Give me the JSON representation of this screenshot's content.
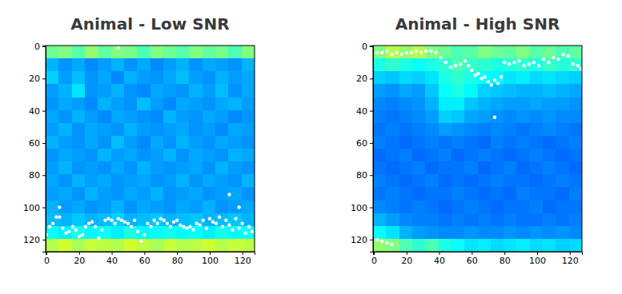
{
  "chart_data": [
    {
      "type": "heatmap",
      "title": "Animal - Low SNR",
      "xlim": [
        -0.5,
        127.5
      ],
      "ylim": [
        -0.5,
        127.5
      ],
      "xticks": [
        0,
        20,
        40,
        60,
        80,
        100,
        120
      ],
      "yticks": [
        0,
        20,
        40,
        60,
        80,
        100,
        120
      ],
      "zlim": [
        0,
        1
      ],
      "x_edges": [
        -0.5,
        7.5,
        15.5,
        23.5,
        31.5,
        39.5,
        47.5,
        55.5,
        63.5,
        71.5,
        79.5,
        87.5,
        95.5,
        103.5,
        111.5,
        119.5,
        127.5
      ],
      "y_edges": [
        -0.5,
        7.5,
        15.5,
        23.5,
        31.5,
        39.5,
        47.5,
        55.5,
        63.5,
        71.5,
        79.5,
        87.5,
        95.5,
        103.5,
        111.5,
        119.5,
        127.5
      ],
      "cells": [
        [
          0.48,
          0.5,
          0.46,
          0.52,
          0.47,
          0.5,
          0.49,
          0.45,
          0.5,
          0.48,
          0.46,
          0.5,
          0.47,
          0.49,
          0.45,
          0.5
        ],
        [
          0.3,
          0.27,
          0.29,
          0.26,
          0.28,
          0.3,
          0.27,
          0.29,
          0.26,
          0.28,
          0.3,
          0.27,
          0.29,
          0.28,
          0.27,
          0.3
        ],
        [
          0.33,
          0.28,
          0.31,
          0.27,
          0.29,
          0.26,
          0.3,
          0.28,
          0.27,
          0.29,
          0.31,
          0.28,
          0.27,
          0.3,
          0.28,
          0.29
        ],
        [
          0.28,
          0.3,
          0.35,
          0.27,
          0.28,
          0.3,
          0.27,
          0.26,
          0.29,
          0.28,
          0.27,
          0.3,
          0.28,
          0.31,
          0.27,
          0.29
        ],
        [
          0.27,
          0.29,
          0.28,
          0.26,
          0.3,
          0.28,
          0.27,
          0.31,
          0.28,
          0.26,
          0.29,
          0.28,
          0.27,
          0.29,
          0.3,
          0.28
        ],
        [
          0.29,
          0.27,
          0.3,
          0.28,
          0.26,
          0.29,
          0.28,
          0.27,
          0.26,
          0.3,
          0.28,
          0.27,
          0.29,
          0.28,
          0.26,
          0.27
        ],
        [
          0.28,
          0.3,
          0.27,
          0.29,
          0.28,
          0.27,
          0.3,
          0.28,
          0.27,
          0.28,
          0.29,
          0.27,
          0.28,
          0.26,
          0.29,
          0.28
        ],
        [
          0.3,
          0.28,
          0.27,
          0.29,
          0.27,
          0.31,
          0.28,
          0.26,
          0.29,
          0.27,
          0.3,
          0.28,
          0.27,
          0.29,
          0.28,
          0.27
        ],
        [
          0.27,
          0.29,
          0.28,
          0.27,
          0.3,
          0.28,
          0.29,
          0.27,
          0.28,
          0.3,
          0.27,
          0.29,
          0.28,
          0.27,
          0.3,
          0.29
        ],
        [
          0.28,
          0.3,
          0.27,
          0.28,
          0.27,
          0.29,
          0.27,
          0.3,
          0.28,
          0.27,
          0.28,
          0.29,
          0.27,
          0.3,
          0.28,
          0.27
        ],
        [
          0.29,
          0.27,
          0.3,
          0.28,
          0.29,
          0.27,
          0.28,
          0.29,
          0.27,
          0.28,
          0.3,
          0.27,
          0.29,
          0.28,
          0.27,
          0.3
        ],
        [
          0.28,
          0.29,
          0.27,
          0.3,
          0.28,
          0.27,
          0.29,
          0.28,
          0.3,
          0.27,
          0.28,
          0.29,
          0.27,
          0.28,
          0.29,
          0.27
        ],
        [
          0.3,
          0.28,
          0.29,
          0.27,
          0.28,
          0.3,
          0.27,
          0.29,
          0.28,
          0.27,
          0.29,
          0.28,
          0.3,
          0.27,
          0.28,
          0.29
        ],
        [
          0.31,
          0.3,
          0.32,
          0.3,
          0.31,
          0.33,
          0.3,
          0.31,
          0.32,
          0.3,
          0.31,
          0.32,
          0.3,
          0.31,
          0.32,
          0.3
        ],
        [
          0.38,
          0.36,
          0.39,
          0.37,
          0.38,
          0.36,
          0.4,
          0.37,
          0.38,
          0.39,
          0.37,
          0.38,
          0.36,
          0.39,
          0.37,
          0.38
        ],
        [
          0.55,
          0.58,
          0.54,
          0.57,
          0.56,
          0.55,
          0.58,
          0.56,
          0.54,
          0.57,
          0.55,
          0.56,
          0.58,
          0.55,
          0.57,
          0.56
        ]
      ],
      "series": [
        {
          "type": "scatter",
          "color": "#ffffff",
          "marker": "circle",
          "x": [
            0,
            2,
            4,
            6,
            8,
            10,
            12,
            14,
            16,
            18,
            20,
            22,
            24,
            26,
            28,
            30,
            32,
            34,
            36,
            38,
            40,
            42,
            44,
            46,
            48,
            50,
            52,
            54,
            56,
            58,
            60,
            62,
            64,
            66,
            68,
            70,
            72,
            74,
            76,
            78,
            80,
            82,
            84,
            86,
            88,
            90,
            92,
            94,
            96,
            98,
            100,
            102,
            104,
            106,
            108,
            110,
            112,
            114,
            116,
            118,
            120,
            122,
            124,
            126,
            44,
            112,
            118,
            8
          ],
          "y": [
            117,
            112,
            110,
            106,
            106,
            113,
            116,
            115,
            112,
            114,
            118,
            117,
            112,
            110,
            109,
            112,
            119,
            114,
            108,
            107,
            108,
            110,
            107,
            108,
            109,
            110,
            112,
            108,
            115,
            121,
            117,
            110,
            112,
            108,
            110,
            107,
            108,
            110,
            112,
            109,
            108,
            111,
            112,
            113,
            112,
            114,
            110,
            111,
            108,
            113,
            107,
            109,
            110,
            106,
            112,
            108,
            111,
            114,
            107,
            113,
            110,
            116,
            112,
            115,
            1,
            92,
            100,
            100
          ]
        }
      ]
    },
    {
      "type": "heatmap",
      "title": "Animal - High SNR",
      "xlim": [
        -0.5,
        127.5
      ],
      "ylim": [
        -0.5,
        127.5
      ],
      "xticks": [
        0,
        20,
        40,
        60,
        80,
        100,
        120
      ],
      "yticks": [
        0,
        20,
        40,
        60,
        80,
        100,
        120
      ],
      "zlim": [
        0,
        1
      ],
      "x_edges": [
        -0.5,
        7.5,
        15.5,
        23.5,
        31.5,
        39.5,
        47.5,
        55.5,
        63.5,
        71.5,
        79.5,
        87.5,
        95.5,
        103.5,
        111.5,
        119.5,
        127.5
      ],
      "y_edges": [
        -0.5,
        7.5,
        15.5,
        23.5,
        31.5,
        39.5,
        47.5,
        55.5,
        63.5,
        71.5,
        79.5,
        87.5,
        95.5,
        103.5,
        111.5,
        119.5,
        127.5
      ],
      "cells": [
        [
          0.5,
          0.55,
          0.52,
          0.55,
          0.5,
          0.48,
          0.45,
          0.46,
          0.5,
          0.48,
          0.47,
          0.5,
          0.46,
          0.48,
          0.45,
          0.47
        ],
        [
          0.4,
          0.42,
          0.4,
          0.38,
          0.4,
          0.42,
          0.45,
          0.43,
          0.42,
          0.4,
          0.41,
          0.42,
          0.4,
          0.43,
          0.41,
          0.42
        ],
        [
          0.33,
          0.32,
          0.34,
          0.33,
          0.35,
          0.4,
          0.42,
          0.4,
          0.38,
          0.37,
          0.35,
          0.36,
          0.34,
          0.35,
          0.34,
          0.33
        ],
        [
          0.28,
          0.27,
          0.29,
          0.28,
          0.32,
          0.38,
          0.4,
          0.37,
          0.33,
          0.32,
          0.31,
          0.3,
          0.3,
          0.31,
          0.3,
          0.29
        ],
        [
          0.26,
          0.25,
          0.26,
          0.27,
          0.3,
          0.36,
          0.36,
          0.32,
          0.3,
          0.29,
          0.28,
          0.28,
          0.29,
          0.28,
          0.28,
          0.27
        ],
        [
          0.25,
          0.24,
          0.25,
          0.26,
          0.28,
          0.33,
          0.32,
          0.29,
          0.28,
          0.27,
          0.26,
          0.27,
          0.26,
          0.27,
          0.26,
          0.26
        ],
        [
          0.24,
          0.25,
          0.24,
          0.25,
          0.26,
          0.28,
          0.27,
          0.26,
          0.25,
          0.26,
          0.25,
          0.24,
          0.25,
          0.26,
          0.25,
          0.24
        ],
        [
          0.25,
          0.24,
          0.23,
          0.24,
          0.25,
          0.24,
          0.25,
          0.24,
          0.23,
          0.25,
          0.24,
          0.25,
          0.24,
          0.23,
          0.24,
          0.25
        ],
        [
          0.23,
          0.24,
          0.25,
          0.23,
          0.24,
          0.25,
          0.23,
          0.24,
          0.25,
          0.24,
          0.23,
          0.24,
          0.25,
          0.24,
          0.23,
          0.24
        ],
        [
          0.24,
          0.23,
          0.24,
          0.25,
          0.23,
          0.24,
          0.24,
          0.25,
          0.23,
          0.24,
          0.25,
          0.23,
          0.24,
          0.25,
          0.24,
          0.23
        ],
        [
          0.25,
          0.24,
          0.23,
          0.24,
          0.25,
          0.23,
          0.24,
          0.23,
          0.24,
          0.25,
          0.24,
          0.24,
          0.23,
          0.24,
          0.25,
          0.24
        ],
        [
          0.24,
          0.25,
          0.24,
          0.23,
          0.24,
          0.24,
          0.25,
          0.24,
          0.23,
          0.24,
          0.23,
          0.25,
          0.24,
          0.24,
          0.23,
          0.25
        ],
        [
          0.26,
          0.25,
          0.24,
          0.25,
          0.24,
          0.23,
          0.24,
          0.25,
          0.24,
          0.23,
          0.24,
          0.24,
          0.25,
          0.23,
          0.24,
          0.24
        ],
        [
          0.3,
          0.28,
          0.26,
          0.25,
          0.25,
          0.24,
          0.25,
          0.24,
          0.25,
          0.24,
          0.25,
          0.24,
          0.24,
          0.25,
          0.24,
          0.25
        ],
        [
          0.38,
          0.35,
          0.3,
          0.28,
          0.27,
          0.26,
          0.26,
          0.27,
          0.26,
          0.26,
          0.27,
          0.26,
          0.27,
          0.26,
          0.27,
          0.26
        ],
        [
          0.52,
          0.5,
          0.45,
          0.42,
          0.45,
          0.4,
          0.38,
          0.35,
          0.36,
          0.34,
          0.35,
          0.36,
          0.34,
          0.35,
          0.33,
          0.34
        ]
      ],
      "series": [
        {
          "type": "scatter",
          "color": "#ffffff",
          "marker": "circle",
          "x": [
            2,
            5,
            8,
            11,
            14,
            17,
            20,
            23,
            26,
            29,
            32,
            35,
            38,
            41,
            44,
            47,
            50,
            53,
            56,
            58,
            60,
            62,
            64,
            66,
            68,
            70,
            72,
            74,
            76,
            78,
            80,
            83,
            86,
            89,
            92,
            95,
            98,
            101,
            104,
            107,
            110,
            113,
            116,
            119,
            122,
            125,
            127,
            74,
            2,
            5,
            8,
            11
          ],
          "y": [
            4,
            4,
            3,
            5,
            4,
            5,
            4,
            4,
            3,
            4,
            3,
            3,
            4,
            7,
            10,
            13,
            12,
            11,
            9,
            12,
            15,
            18,
            17,
            20,
            19,
            22,
            24,
            21,
            23,
            19,
            10,
            11,
            10,
            9,
            12,
            11,
            10,
            12,
            8,
            10,
            7,
            8,
            5,
            6,
            11,
            12,
            14,
            44,
            120,
            121,
            122,
            123
          ]
        }
      ]
    }
  ]
}
